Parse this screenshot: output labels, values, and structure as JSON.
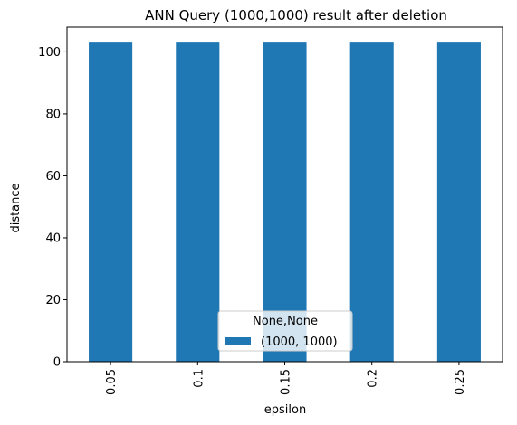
{
  "chart_data": {
    "type": "bar",
    "title": "ANN Query (1000,1000) result after deletion",
    "xlabel": "epsilon",
    "ylabel": "distance",
    "categories": [
      "0.05",
      "0.1",
      "0.15",
      "0.2",
      "0.25"
    ],
    "series": [
      {
        "name": "(1000, 1000)",
        "values": [
          103,
          103,
          103,
          103,
          103
        ],
        "color": "#1f77b4"
      }
    ],
    "ylim": [
      0,
      108
    ],
    "yticks": [
      0,
      20,
      40,
      60,
      80,
      100
    ],
    "grid": false,
    "legend": {
      "title": "None,None",
      "placement": "bottom-center"
    }
  }
}
